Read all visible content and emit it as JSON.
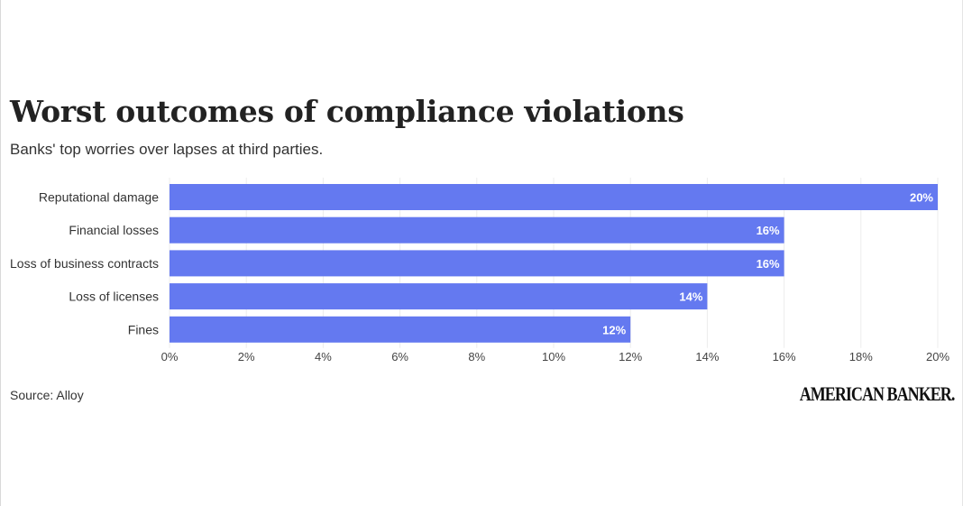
{
  "chart_data": {
    "type": "bar",
    "orientation": "horizontal",
    "title": "Worst outcomes of compliance violations",
    "subtitle": "Banks' top worries over lapses at third parties.",
    "categories": [
      "Reputational damage",
      "Financial losses",
      "Loss of business contracts",
      "Loss of licenses",
      "Fines"
    ],
    "values": [
      20,
      16,
      16,
      14,
      12
    ],
    "value_labels": [
      "20%",
      "16%",
      "16%",
      "14%",
      "12%"
    ],
    "xlim": [
      0,
      20
    ],
    "xticks": [
      "0%",
      "2%",
      "4%",
      "6%",
      "8%",
      "10%",
      "12%",
      "14%",
      "16%",
      "18%",
      "20%"
    ],
    "grid": true,
    "bar_color": "#6479f0"
  },
  "footer": {
    "source": "Source: Alloy",
    "brand": "AMERICAN BANKER."
  }
}
